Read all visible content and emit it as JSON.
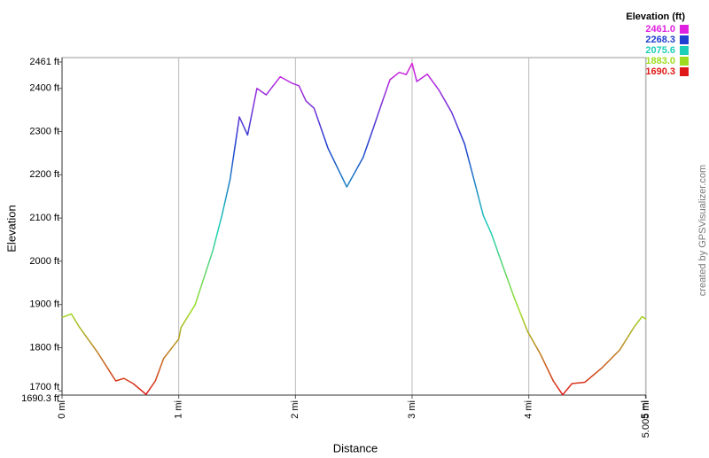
{
  "chart_data": {
    "type": "line",
    "xlabel": "Distance",
    "ylabel": "Elevation",
    "credit": "created by GPSVisualizer.com",
    "legend_title": "Elevation (ft)",
    "color_scale": [
      {
        "value": 2461,
        "label": "2461.0",
        "color": "#e020e0"
      },
      {
        "value": 2268.3,
        "label": "2268.3",
        "color": "#1f3fd0"
      },
      {
        "value": 2075.6,
        "label": "2075.6",
        "color": "#1ccfb8"
      },
      {
        "value": 1883,
        "label": "1883.0",
        "color": "#9edc20"
      },
      {
        "value": 1690.3,
        "label": "1690.3",
        "color": "#e01818"
      }
    ],
    "xlim": [
      0,
      5.005
    ],
    "ylim": [
      1690.3,
      2461
    ],
    "xticks": [
      {
        "value": 0,
        "label": "0 mi"
      },
      {
        "value": 1,
        "label": "1 mi"
      },
      {
        "value": 2,
        "label": "2 mi"
      },
      {
        "value": 3,
        "label": "3 mi"
      },
      {
        "value": 4,
        "label": "4 mi"
      },
      {
        "value": 5,
        "label": "5 mi"
      },
      {
        "value": 5.005,
        "label": "5.005 mi"
      }
    ],
    "yticks": [
      {
        "value": 1690.3,
        "label": "1690.3 ft"
      },
      {
        "value": 1700,
        "label": "1700 ft"
      },
      {
        "value": 1800,
        "label": "1800 ft"
      },
      {
        "value": 1900,
        "label": "1900 ft"
      },
      {
        "value": 2000,
        "label": "2000 ft"
      },
      {
        "value": 2100,
        "label": "2100 ft"
      },
      {
        "value": 2200,
        "label": "2200 ft"
      },
      {
        "value": 2300,
        "label": "2300 ft"
      },
      {
        "value": 2400,
        "label": "2400 ft"
      },
      {
        "value": 2461,
        "label": "2461 ft"
      }
    ],
    "grid": true,
    "x": [
      0,
      0.08,
      0.15,
      0.3,
      0.46,
      0.53,
      0.61,
      0.72,
      0.8,
      0.87,
      1.0,
      1.02,
      1.14,
      1.29,
      1.37,
      1.44,
      1.52,
      1.59,
      1.67,
      1.75,
      1.87,
      1.97,
      2.03,
      2.09,
      2.16,
      2.28,
      2.44,
      2.58,
      2.66,
      2.73,
      2.81,
      2.89,
      2.95,
      3.0,
      3.04,
      3.13,
      3.23,
      3.34,
      3.45,
      3.53,
      3.61,
      3.68,
      3.76,
      3.87,
      3.99,
      4.1,
      4.21,
      4.29,
      4.37,
      4.48,
      4.63,
      4.78,
      4.9,
      4.97,
      5.005
    ],
    "values": [
      1870,
      1878,
      1847,
      1791,
      1723,
      1729,
      1717,
      1692,
      1723,
      1775,
      1820,
      1847,
      1899,
      2023,
      2106,
      2189,
      2334,
      2292,
      2400,
      2385,
      2427,
      2412,
      2406,
      2371,
      2354,
      2261,
      2172,
      2240,
      2302,
      2358,
      2420,
      2437,
      2432,
      2458,
      2416,
      2433,
      2396,
      2344,
      2271,
      2189,
      2106,
      2064,
      2002,
      1919,
      1837,
      1785,
      1723,
      1691,
      1717,
      1720,
      1754,
      1795,
      1847,
      1872,
      1866
    ]
  }
}
